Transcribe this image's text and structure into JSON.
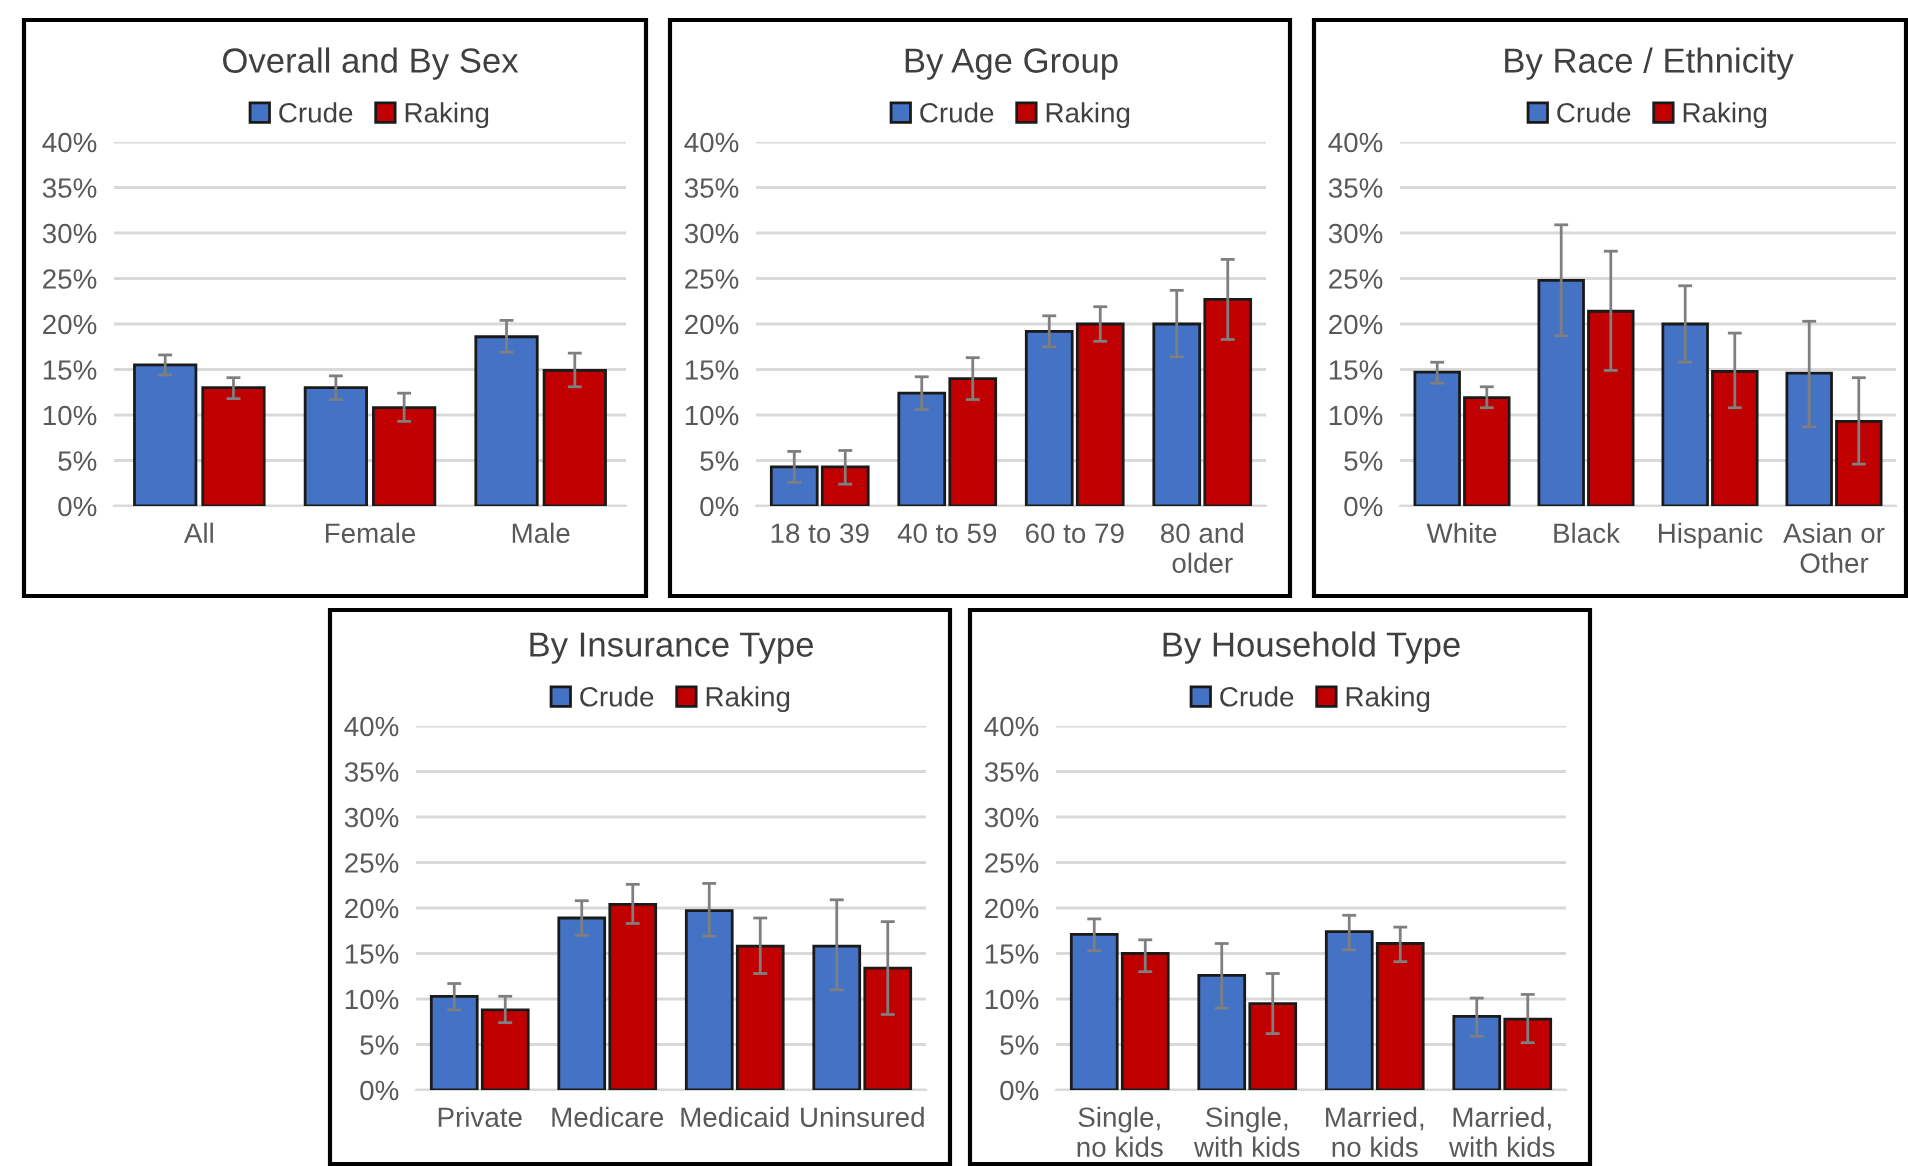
{
  "chart_data": [
    {
      "type": "bar",
      "title": "Overall and By Sex",
      "categories": [
        "All",
        "Female",
        "Male"
      ],
      "legend": "top",
      "grid": "y",
      "ylim": [
        0,
        40
      ],
      "yticks": [
        {
          "value": 0,
          "label": "0%"
        },
        {
          "value": 5,
          "label": "5%"
        },
        {
          "value": 10,
          "label": "10%"
        },
        {
          "value": 15,
          "label": "15%"
        },
        {
          "value": 20,
          "label": "20%"
        },
        {
          "value": 25,
          "label": "25%"
        },
        {
          "value": 30,
          "label": "30%"
        },
        {
          "value": 35,
          "label": "35%"
        },
        {
          "value": 40,
          "label": "40%"
        }
      ],
      "series": [
        {
          "name": "Crude",
          "color": "#4472c4",
          "values": [
            15.5,
            13.0,
            18.6
          ],
          "errors": [
            [
              14.4,
              16.6
            ],
            [
              11.7,
              14.3
            ],
            [
              16.9,
              20.4
            ]
          ]
        },
        {
          "name": "Raking",
          "color": "#c00000",
          "values": [
            13.0,
            10.8,
            14.9
          ],
          "errors": [
            [
              11.8,
              14.1
            ],
            [
              9.3,
              12.4
            ],
            [
              13.1,
              16.8
            ]
          ]
        }
      ]
    },
    {
      "type": "bar",
      "title": "By Age Group",
      "categories": [
        "18 to 39",
        "40 to 59",
        "60 to 79",
        "80 and\nolder"
      ],
      "legend": "top",
      "grid": "y",
      "ylim": [
        0,
        40
      ],
      "yticks": [
        {
          "value": 0,
          "label": "0%"
        },
        {
          "value": 5,
          "label": "5%"
        },
        {
          "value": 10,
          "label": "10%"
        },
        {
          "value": 15,
          "label": "15%"
        },
        {
          "value": 20,
          "label": "20%"
        },
        {
          "value": 25,
          "label": "25%"
        },
        {
          "value": 30,
          "label": "30%"
        },
        {
          "value": 35,
          "label": "35%"
        },
        {
          "value": 40,
          "label": "40%"
        }
      ],
      "series": [
        {
          "name": "Crude",
          "color": "#4472c4",
          "values": [
            4.3,
            12.4,
            19.2,
            20.0
          ],
          "errors": [
            [
              2.6,
              6.0
            ],
            [
              10.6,
              14.2
            ],
            [
              17.5,
              20.9
            ],
            [
              16.4,
              23.7
            ]
          ]
        },
        {
          "name": "Raking",
          "color": "#c00000",
          "values": [
            4.3,
            14.0,
            20.0,
            22.7
          ],
          "errors": [
            [
              2.4,
              6.1
            ],
            [
              11.7,
              16.3
            ],
            [
              18.1,
              21.9
            ],
            [
              18.3,
              27.1
            ]
          ]
        }
      ]
    },
    {
      "type": "bar",
      "title": "By Race / Ethnicity",
      "categories": [
        "White",
        "Black",
        "Hispanic",
        "Asian or\nOther"
      ],
      "legend": "top",
      "grid": "y",
      "ylim": [
        0,
        40
      ],
      "yticks": [
        {
          "value": 0,
          "label": "0%"
        },
        {
          "value": 5,
          "label": "5%"
        },
        {
          "value": 10,
          "label": "10%"
        },
        {
          "value": 15,
          "label": "15%"
        },
        {
          "value": 20,
          "label": "20%"
        },
        {
          "value": 25,
          "label": "25%"
        },
        {
          "value": 30,
          "label": "30%"
        },
        {
          "value": 35,
          "label": "35%"
        },
        {
          "value": 40,
          "label": "40%"
        }
      ],
      "series": [
        {
          "name": "Crude",
          "color": "#4472c4",
          "values": [
            14.7,
            24.8,
            20.0,
            14.6
          ],
          "errors": [
            [
              13.5,
              15.8
            ],
            [
              18.7,
              30.9
            ],
            [
              15.8,
              24.2
            ],
            [
              8.7,
              20.3
            ]
          ]
        },
        {
          "name": "Raking",
          "color": "#c00000",
          "values": [
            11.9,
            21.4,
            14.8,
            9.3
          ],
          "errors": [
            [
              10.8,
              13.1
            ],
            [
              14.9,
              28.0
            ],
            [
              10.8,
              19.0
            ],
            [
              4.6,
              14.1
            ]
          ]
        }
      ]
    },
    {
      "type": "bar",
      "title": "By Insurance Type",
      "categories": [
        "Private",
        "Medicare",
        "Medicaid",
        "Uninsured"
      ],
      "legend": "top",
      "grid": "y",
      "ylim": [
        0,
        40
      ],
      "yticks": [
        {
          "value": 0,
          "label": "0%"
        },
        {
          "value": 5,
          "label": "5%"
        },
        {
          "value": 10,
          "label": "10%"
        },
        {
          "value": 15,
          "label": "15%"
        },
        {
          "value": 20,
          "label": "20%"
        },
        {
          "value": 25,
          "label": "25%"
        },
        {
          "value": 30,
          "label": "30%"
        },
        {
          "value": 35,
          "label": "35%"
        },
        {
          "value": 40,
          "label": "40%"
        }
      ],
      "series": [
        {
          "name": "Crude",
          "color": "#4472c4",
          "values": [
            10.3,
            18.9,
            19.7,
            15.8
          ],
          "errors": [
            [
              8.8,
              11.7
            ],
            [
              17.0,
              20.8
            ],
            [
              16.9,
              22.7
            ],
            [
              11.0,
              20.9
            ]
          ]
        },
        {
          "name": "Raking",
          "color": "#c00000",
          "values": [
            8.8,
            20.4,
            15.8,
            13.4
          ],
          "errors": [
            [
              7.4,
              10.3
            ],
            [
              18.3,
              22.6
            ],
            [
              12.8,
              18.9
            ],
            [
              8.3,
              18.5
            ]
          ]
        }
      ]
    },
    {
      "type": "bar",
      "title": "By Household Type",
      "categories": [
        "Single,\nno kids",
        "Single,\nwith kids",
        "Married,\nno kids",
        "Married,\nwith kids"
      ],
      "legend": "top",
      "grid": "y",
      "ylim": [
        0,
        40
      ],
      "yticks": [
        {
          "value": 0,
          "label": "0%"
        },
        {
          "value": 5,
          "label": "5%"
        },
        {
          "value": 10,
          "label": "10%"
        },
        {
          "value": 15,
          "label": "15%"
        },
        {
          "value": 20,
          "label": "20%"
        },
        {
          "value": 25,
          "label": "25%"
        },
        {
          "value": 30,
          "label": "30%"
        },
        {
          "value": 35,
          "label": "35%"
        },
        {
          "value": 40,
          "label": "40%"
        }
      ],
      "series": [
        {
          "name": "Crude",
          "color": "#4472c4",
          "values": [
            17.1,
            12.6,
            17.4,
            8.1
          ],
          "errors": [
            [
              15.3,
              18.8
            ],
            [
              9.0,
              16.1
            ],
            [
              15.4,
              19.2
            ],
            [
              5.9,
              10.1
            ]
          ]
        },
        {
          "name": "Raking",
          "color": "#c00000",
          "values": [
            15.0,
            9.5,
            16.1,
            7.8
          ],
          "errors": [
            [
              13.0,
              16.5
            ],
            [
              6.2,
              12.8
            ],
            [
              14.1,
              17.9
            ],
            [
              5.2,
              10.5
            ]
          ]
        }
      ]
    }
  ]
}
